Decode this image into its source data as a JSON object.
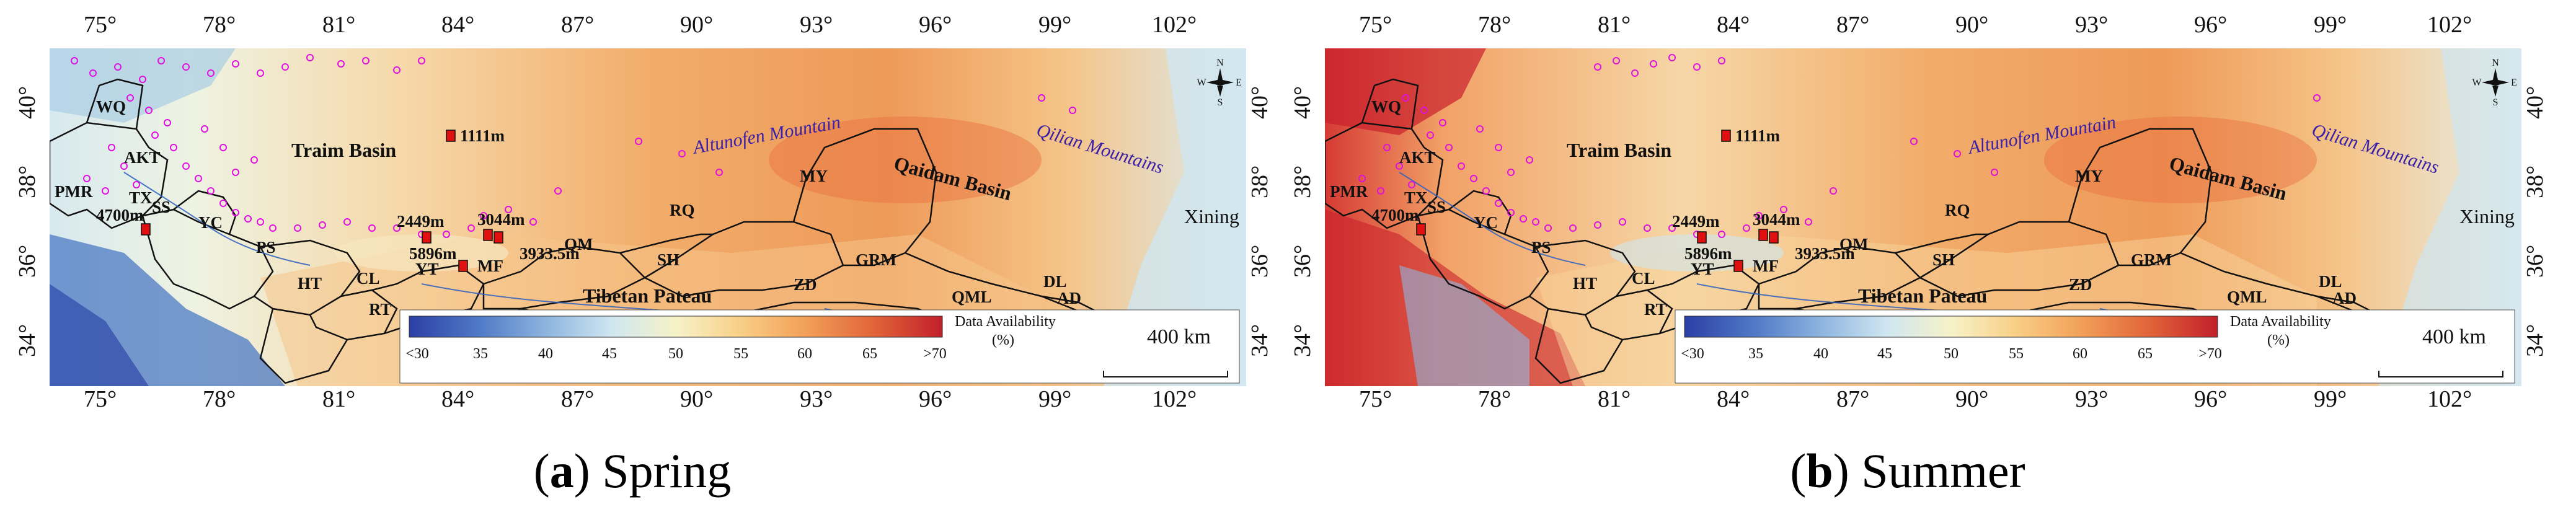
{
  "lon_ticks": [
    "75°",
    "78°",
    "81°",
    "84°",
    "87°",
    "90°",
    "93°",
    "96°",
    "99°",
    "102°"
  ],
  "lat_ticks": [
    "34°",
    "36°",
    "38°",
    "40°"
  ],
  "legend": {
    "title": "Data Availability",
    "unit": "(%)",
    "labels": [
      "<30",
      "35",
      "40",
      "45",
      "50",
      "55",
      "60",
      "65",
      ">70"
    ],
    "colors": [
      "#2c3fa5",
      "#4f79c6",
      "#8fb6e0",
      "#cfe6f0",
      "#f6f2c8",
      "#f9cf87",
      "#f2a159",
      "#e2653a",
      "#c21f2a"
    ]
  },
  "scale_bar": {
    "label": "400 km"
  },
  "compass": {
    "n": "N",
    "s": "S",
    "e": "E",
    "w": "W"
  },
  "map_labels": {
    "wq": "WQ",
    "akt": "AKT",
    "pmr": "PMR",
    "tx": "TX",
    "ss": "SS",
    "yc": "YC",
    "ps": "PS",
    "ht": "HT",
    "cl": "CL",
    "rt": "RT",
    "yt": "YT",
    "mf": "MF",
    "qm": "QM",
    "rq": "RQ",
    "my": "MY",
    "sh": "SH",
    "grm": "GRM",
    "zd": "ZD",
    "qml": "QML",
    "dl": "DL",
    "ad": "AD",
    "train_basin": "Traim Basin",
    "qaidam": "Qaidam Basin",
    "altun": "Altunofen Mountain",
    "qilian": "Qilian Mountains",
    "xining": "Xining",
    "tibetan": "Tibetan Pateau",
    "elev_1111": "1111m",
    "elev_4700": "4700m",
    "elev_2449": "2449m",
    "elev_3044": "3044m",
    "elev_5896": "5896m",
    "elev_3933": "3933.5m"
  },
  "panels": [
    {
      "letter": "a",
      "season": "Spring"
    },
    {
      "letter": "b",
      "season": "Summer"
    }
  ]
}
